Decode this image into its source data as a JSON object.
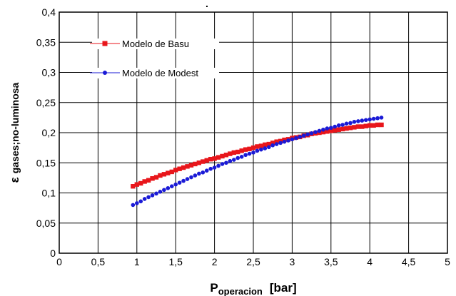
{
  "chart_data": {
    "type": "scatter",
    "title": "",
    "xlabel": {
      "main": "P",
      "sub": "operacion",
      "unit": "[bar]"
    },
    "ylabel": {
      "main": "ε",
      "sub": "gases;no-luminosa"
    },
    "xlim": [
      0,
      5
    ],
    "ylim": [
      0,
      0.4
    ],
    "x_ticks": [
      "0",
      "0,5",
      "1",
      "1,5",
      "2",
      "2,5",
      "3",
      "3,5",
      "4",
      "4,5",
      "5"
    ],
    "y_ticks": [
      "0",
      "0,05",
      "0,1",
      "0,15",
      "0,2",
      "0,25",
      "0,3",
      "0,35",
      "0,4"
    ],
    "grid": true,
    "legend_position": "top-left",
    "series": [
      {
        "name": "Modelo de Basu",
        "color": "#e8161b",
        "marker": "square",
        "x": [
          0.95,
          1.0,
          1.05,
          1.1,
          1.15,
          1.2,
          1.25,
          1.3,
          1.35,
          1.4,
          1.45,
          1.5,
          1.55,
          1.6,
          1.65,
          1.7,
          1.75,
          1.8,
          1.85,
          1.9,
          1.95,
          2.0,
          2.05,
          2.1,
          2.15,
          2.2,
          2.25,
          2.3,
          2.35,
          2.4,
          2.45,
          2.5,
          2.55,
          2.6,
          2.65,
          2.7,
          2.75,
          2.8,
          2.85,
          2.9,
          2.95,
          3.0,
          3.05,
          3.1,
          3.15,
          3.2,
          3.25,
          3.3,
          3.35,
          3.4,
          3.45,
          3.5,
          3.55,
          3.6,
          3.65,
          3.7,
          3.75,
          3.8,
          3.85,
          3.9,
          3.95,
          4.0,
          4.05,
          4.1,
          4.15
        ],
        "y": [
          0.111,
          0.114,
          0.116,
          0.119,
          0.121,
          0.124,
          0.126,
          0.129,
          0.131,
          0.133,
          0.135,
          0.138,
          0.14,
          0.142,
          0.144,
          0.146,
          0.148,
          0.15,
          0.152,
          0.154,
          0.156,
          0.157,
          0.159,
          0.161,
          0.163,
          0.165,
          0.167,
          0.168,
          0.17,
          0.172,
          0.173,
          0.175,
          0.177,
          0.178,
          0.18,
          0.181,
          0.183,
          0.185,
          0.186,
          0.188,
          0.189,
          0.191,
          0.192,
          0.193,
          0.195,
          0.196,
          0.198,
          0.199,
          0.2,
          0.201,
          0.202,
          0.203,
          0.204,
          0.205,
          0.206,
          0.207,
          0.208,
          0.209,
          0.21,
          0.21,
          0.211,
          0.212,
          0.212,
          0.213,
          0.213
        ]
      },
      {
        "name": "Modelo de Modest",
        "color": "#1a1ad6",
        "marker": "circle",
        "x": [
          0.95,
          1.0,
          1.05,
          1.1,
          1.15,
          1.2,
          1.25,
          1.3,
          1.35,
          1.4,
          1.45,
          1.5,
          1.55,
          1.6,
          1.65,
          1.7,
          1.75,
          1.8,
          1.85,
          1.9,
          1.95,
          2.0,
          2.05,
          2.1,
          2.15,
          2.2,
          2.25,
          2.3,
          2.35,
          2.4,
          2.45,
          2.5,
          2.55,
          2.6,
          2.65,
          2.7,
          2.75,
          2.8,
          2.85,
          2.9,
          2.95,
          3.0,
          3.05,
          3.1,
          3.15,
          3.2,
          3.25,
          3.3,
          3.35,
          3.4,
          3.45,
          3.5,
          3.55,
          3.6,
          3.65,
          3.7,
          3.75,
          3.8,
          3.85,
          3.9,
          3.95,
          4.0,
          4.05,
          4.1,
          4.15
        ],
        "y": [
          0.08,
          0.083,
          0.086,
          0.09,
          0.093,
          0.096,
          0.099,
          0.102,
          0.105,
          0.108,
          0.111,
          0.114,
          0.117,
          0.12,
          0.123,
          0.126,
          0.129,
          0.132,
          0.134,
          0.137,
          0.14,
          0.142,
          0.145,
          0.148,
          0.15,
          0.153,
          0.155,
          0.158,
          0.16,
          0.163,
          0.165,
          0.167,
          0.17,
          0.172,
          0.174,
          0.176,
          0.179,
          0.181,
          0.183,
          0.185,
          0.187,
          0.189,
          0.191,
          0.193,
          0.195,
          0.197,
          0.199,
          0.201,
          0.203,
          0.205,
          0.207,
          0.208,
          0.21,
          0.212,
          0.213,
          0.215,
          0.216,
          0.218,
          0.219,
          0.22,
          0.221,
          0.222,
          0.223,
          0.224,
          0.225
        ]
      }
    ],
    "annotations": [
      "."
    ]
  }
}
